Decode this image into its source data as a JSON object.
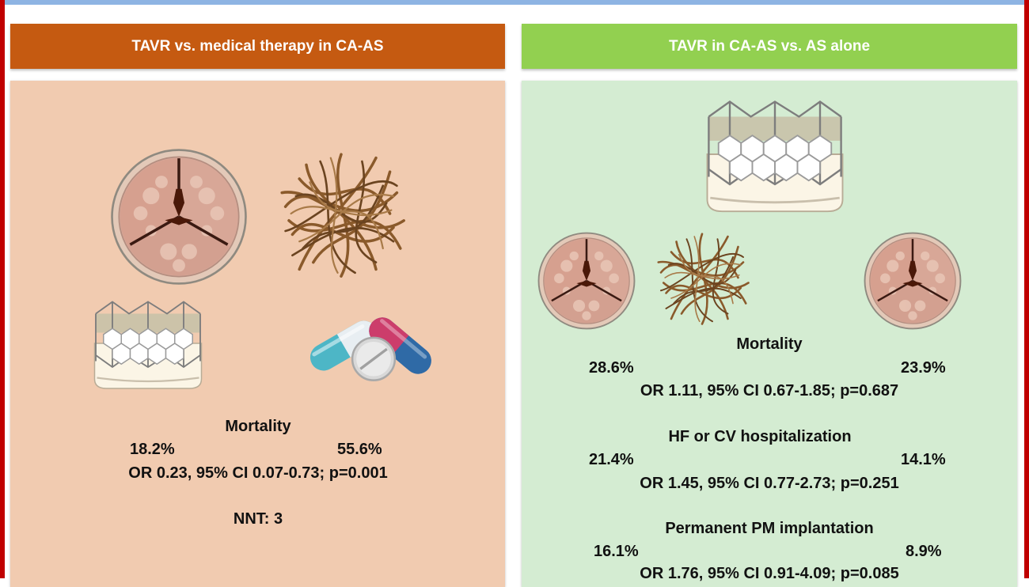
{
  "left_panel": {
    "header": "TAVR vs. medical therapy in CA-AS",
    "outcome": {
      "title": "Mortality",
      "value_a": "18.2%",
      "value_b": "55.6%",
      "stats": "OR 0.23, 95% CI 0.07-0.73; p=0.001"
    },
    "nnt": "NNT: 3",
    "icons": [
      "stenotic-aortic-valve-icon",
      "amyloid-fibrils-icon",
      "tavr-valve-icon",
      "pills-icon"
    ]
  },
  "right_panel": {
    "header": "TAVR in CA-AS vs. AS alone",
    "outcomes": [
      {
        "title": "Mortality",
        "value_a": "28.6%",
        "value_b": "23.9%",
        "stats": "OR 1.11, 95% CI 0.67-1.85; p=0.687"
      },
      {
        "title": "HF or CV hospitalization",
        "value_a": "21.4%",
        "value_b": "14.1%",
        "stats": "OR 1.45, 95% CI 0.77-2.73; p=0.251"
      },
      {
        "title": "Permanent PM implantation",
        "value_a": "16.1%",
        "value_b": "8.9%",
        "stats": "OR 1.76, 95% CI 0.91-4.09; p=0.085"
      }
    ],
    "icons": [
      "tavr-valve-icon",
      "stenotic-aortic-valve-icon",
      "amyloid-fibrils-icon",
      "stenotic-aortic-valve-icon"
    ]
  },
  "colors": {
    "left_header": "#c55a11",
    "left_body": "#f1cbb0",
    "right_header": "#92d050",
    "right_body": "#d4ecd2",
    "frame": "#c00000",
    "top_band": "#8eb4e3"
  }
}
